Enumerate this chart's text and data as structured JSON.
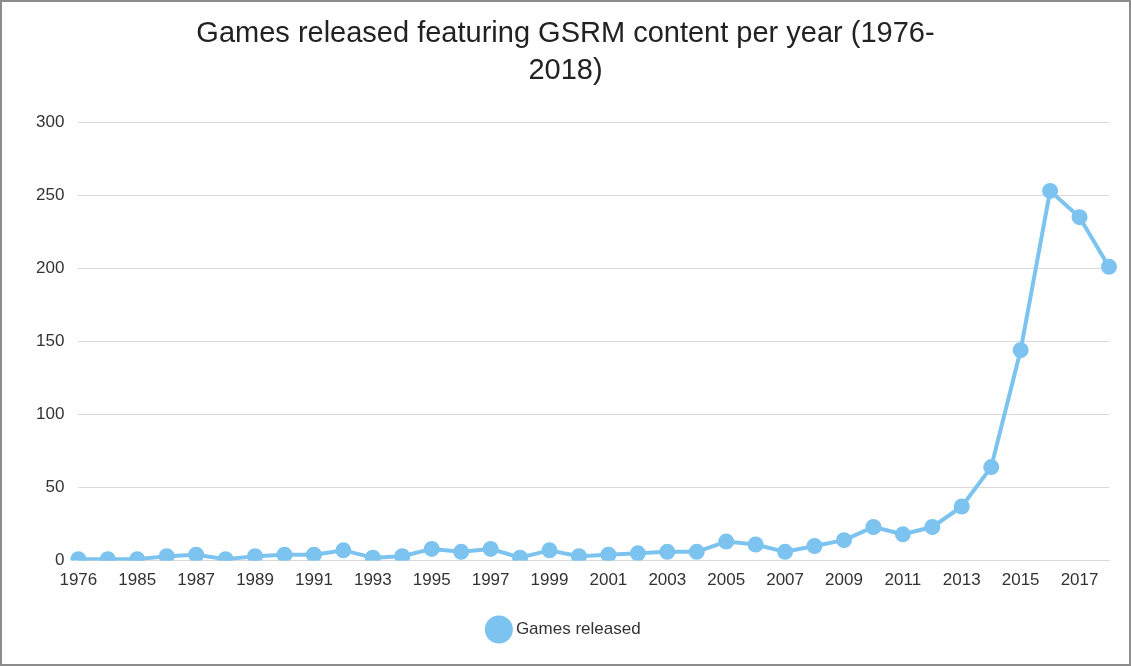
{
  "chart_data": {
    "type": "line",
    "title": "Games released featuring GSRM content per year (1976-2018)",
    "categories": [
      "1976",
      null,
      "1985",
      null,
      "1987",
      null,
      "1989",
      null,
      "1991",
      null,
      "1993",
      null,
      "1995",
      null,
      "1997",
      null,
      "1999",
      null,
      "2001",
      null,
      "2003",
      null,
      "2005",
      null,
      "2007",
      null,
      "2009",
      null,
      "2011",
      null,
      "2013",
      null,
      "2015",
      null,
      "2017",
      null
    ],
    "series": [
      {
        "name": "Games released",
        "color": "#7cc4ef",
        "values": [
          1,
          1,
          1,
          3,
          4,
          1,
          3,
          4,
          4,
          7,
          2,
          3,
          8,
          6,
          8,
          2,
          7,
          3,
          4,
          5,
          6,
          6,
          13,
          11,
          6,
          10,
          14,
          23,
          18,
          23,
          37,
          64,
          144,
          253,
          235,
          201
        ]
      }
    ],
    "ylim": [
      0,
      300
    ],
    "yticks": [
      0,
      50,
      100,
      150,
      200,
      250,
      300
    ],
    "grid": "y",
    "legend": "bottom",
    "marker": "circle",
    "line_style": "solid"
  }
}
